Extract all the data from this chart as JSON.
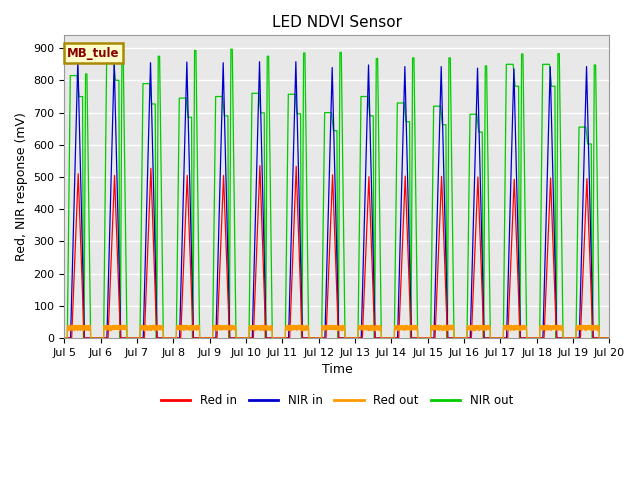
{
  "title": "LED NDVI Sensor",
  "xlabel": "Time",
  "ylabel": "Red, NIR response (mV)",
  "ylim": [
    0,
    940
  ],
  "xlim": [
    5,
    20
  ],
  "annotation_text": "MB_tule",
  "annotation_bg": "#ffffcc",
  "annotation_border": "#aa8800",
  "legend_labels": [
    "Red in",
    "NIR in",
    "Red out",
    "NIR out"
  ],
  "colors": [
    "#ff0000",
    "#0000cc",
    "#ff9900",
    "#00cc00"
  ],
  "title_fontsize": 11,
  "tick_fontsize": 8,
  "ylabel_fontsize": 9,
  "xlabel_fontsize": 9,
  "plot_bg": "#e8e8e8",
  "fig_bg": "#ffffff",
  "grid_color": "#ffffff",
  "red_in_peaks": [
    510,
    505,
    527,
    505,
    505,
    535,
    533,
    507,
    501,
    503,
    502,
    500,
    493,
    497,
    495
  ],
  "nir_in_peaks": [
    863,
    858,
    855,
    857,
    855,
    858,
    858,
    840,
    848,
    843,
    843,
    838,
    836,
    842,
    843
  ],
  "nir_out_peaks": [
    820,
    870,
    875,
    893,
    897,
    875,
    885,
    887,
    868,
    870,
    870,
    845,
    882,
    883,
    848
  ],
  "nir_out_early": [
    815,
    870,
    790,
    745,
    750,
    760,
    757,
    700,
    750,
    730,
    720,
    695,
    850,
    850,
    655
  ],
  "start_day": 5,
  "n_days": 15,
  "pts_per_day": 400,
  "red_out_base": 25,
  "red_out_amp": 12
}
